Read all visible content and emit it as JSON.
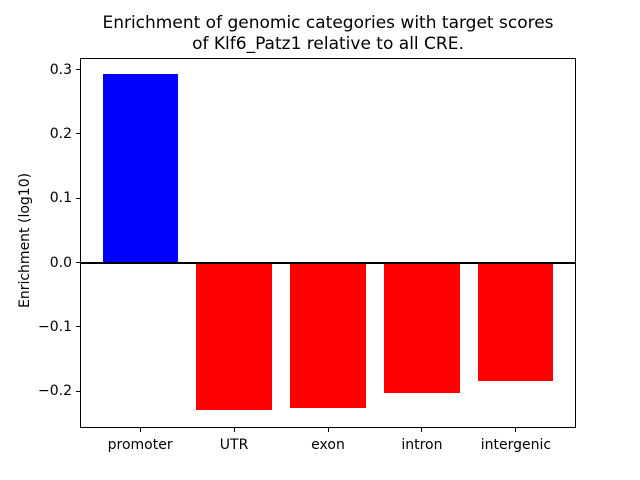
{
  "title": {
    "line1": "Enrichment of genomic categories with target scores",
    "line2": "of Klf6_Patz1 relative to all CRE."
  },
  "chart_data": {
    "type": "bar",
    "title": "Enrichment of genomic categories with target scores\nof Klf6_Patz1 relative to all CRE.",
    "categories": [
      "promoter",
      "UTR",
      "exon",
      "intron",
      "intergenic"
    ],
    "values": [
      0.293,
      -0.229,
      -0.226,
      -0.203,
      -0.184
    ],
    "colors": [
      "#0000ff",
      "#ff0000",
      "#ff0000",
      "#ff0000",
      "#ff0000"
    ],
    "xlabel": "",
    "ylabel": "Enrichment (log10)",
    "ylim": [
      -0.257,
      0.318
    ],
    "xlim": [
      -0.64,
      4.64
    ],
    "bar_width": 0.8,
    "yticks": [
      {
        "value": 0.3,
        "label": "0.3"
      },
      {
        "value": 0.2,
        "label": "0.2"
      },
      {
        "value": 0.1,
        "label": "0.1"
      },
      {
        "value": 0.0,
        "label": "0.0"
      },
      {
        "value": -0.1,
        "label": "−0.1"
      },
      {
        "value": -0.2,
        "label": "−0.2"
      }
    ],
    "zero_line": true,
    "grid": false,
    "legend": null,
    "axis_color": "#000000",
    "background_color": "#ffffff"
  }
}
